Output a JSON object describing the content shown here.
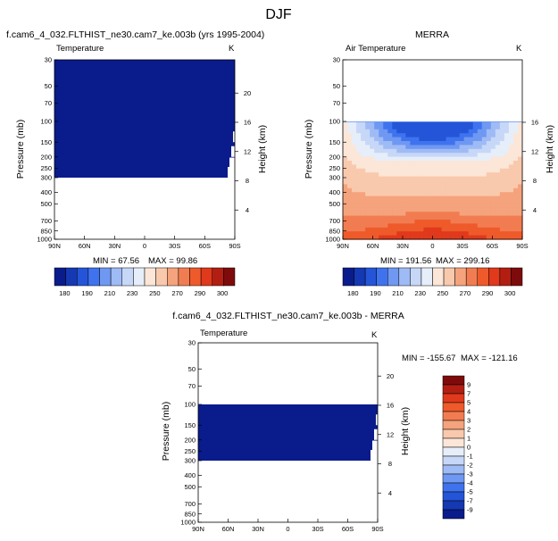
{
  "page": {
    "figure_title": "DJF"
  },
  "colorbars": {
    "top_labels": [
      "180",
      "190",
      "210",
      "230",
      "250",
      "270",
      "290",
      "300"
    ],
    "top_colors": [
      "#0a1b8c",
      "#1538b3",
      "#2455d8",
      "#3f73ee",
      "#6f98f2",
      "#9fbbf5",
      "#c7d7f7",
      "#e6eefa",
      "#fbe6d8",
      "#f9c9ad",
      "#f5a37c",
      "#f27c51",
      "#ef5a2b",
      "#e0391b",
      "#b21f12",
      "#7e0b0b"
    ],
    "diff_labels": [
      "9",
      "7",
      "5",
      "4",
      "3",
      "2",
      "1",
      "0",
      "-1",
      "-2",
      "-3",
      "-4",
      "-5",
      "-7",
      "-9"
    ],
    "diff_colors": [
      "#7e0b0b",
      "#b21f12",
      "#e0391b",
      "#ef5a2b",
      "#f27c51",
      "#f5a37c",
      "#f9c9ad",
      "#fbe6d8",
      "#e6eefa",
      "#c7d7f7",
      "#9fbbf5",
      "#6f98f2",
      "#3f73ee",
      "#2455d8",
      "#1538b3",
      "#0a1b8c"
    ]
  },
  "chart_data": [
    {
      "type": "heatmap",
      "title": "f.cam6_4_032.FLTHIST_ne30.cam7_ke.003b (yrs 1995-2004)",
      "left_label": "Temperature",
      "right_label": "K",
      "xlabel": "",
      "ylabel": "Pressure (mb)",
      "y2label": "Height (km)",
      "x_ticks": [
        "90N",
        "60N",
        "30N",
        "0",
        "30S",
        "60S",
        "90S"
      ],
      "y_ticks": [
        "30",
        "50",
        "70",
        "100",
        "150",
        "200",
        "250",
        "300",
        "400",
        "500",
        "700",
        "850",
        "1000"
      ],
      "y2_ticks": [
        "20",
        "16",
        "12",
        "8",
        "4"
      ],
      "min_text": "MIN =  67.56",
      "max_text": "MAX =  99.86",
      "fill_pressure_top": 30,
      "fill_pressure_bottom": 300,
      "fill_value": 67.56,
      "colorbar_labels": [
        "180",
        "190",
        "210",
        "230",
        "250",
        "270",
        "290",
        "300"
      ]
    },
    {
      "type": "heatmap",
      "title": "MERRA",
      "left_label": "Air Temperature",
      "right_label": "K",
      "xlabel": "",
      "ylabel": "Pressure (mb)",
      "y2label": "Height (km)",
      "x_ticks": [
        "90N",
        "60N",
        "30N",
        "0",
        "30S",
        "60S",
        "90S"
      ],
      "y_ticks": [
        "30",
        "50",
        "70",
        "100",
        "150",
        "200",
        "250",
        "300",
        "400",
        "500",
        "700",
        "850",
        "1000"
      ],
      "y2_ticks": [
        "16",
        "12",
        "8",
        "4"
      ],
      "min_text": "MIN = 191.56",
      "max_text": "MAX = 299.16",
      "data_pressure_top": 100,
      "min_value": 191.56,
      "max_value": 299.16,
      "colorbar_labels": [
        "180",
        "190",
        "210",
        "230",
        "250",
        "270",
        "290",
        "300"
      ]
    },
    {
      "type": "heatmap",
      "title": "f.cam6_4_032.FLTHIST_ne30.cam7_ke.003b - MERRA",
      "left_label": "Temperature",
      "right_label": "K",
      "xlabel": "",
      "ylabel": "Pressure (mb)",
      "y2label": "Height (km)",
      "x_ticks": [
        "90N",
        "60N",
        "30N",
        "0",
        "30S",
        "60S",
        "90S"
      ],
      "y_ticks": [
        "30",
        "50",
        "70",
        "100",
        "150",
        "200",
        "250",
        "300",
        "400",
        "500",
        "700",
        "850",
        "1000"
      ],
      "y2_ticks": [
        "20",
        "16",
        "12",
        "8",
        "4"
      ],
      "min_text": "MIN = -155.67",
      "max_text": "MAX = -121.16",
      "fill_pressure_top": 100,
      "fill_pressure_bottom": 300,
      "fill_value": -155.67,
      "colorbar_labels": [
        "9",
        "7",
        "5",
        "4",
        "3",
        "2",
        "1",
        "0",
        "-1",
        "-2",
        "-3",
        "-4",
        "-5",
        "-7",
        "-9"
      ]
    }
  ]
}
